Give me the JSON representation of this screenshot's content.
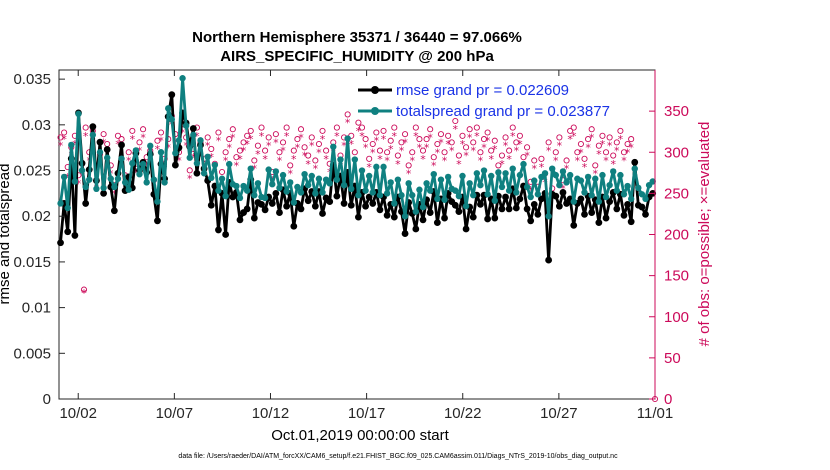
{
  "chart_data": {
    "type": "line",
    "title_line1": "Northern Hemisphere 35371 / 36440 = 97.066%",
    "title_line2": "AIRS_SPECIFIC_HUMIDITY @ 200 hPa",
    "xlabel": "Oct.01,2019 00:00:00 start",
    "ylabel_left": "rmse and totalspread",
    "ylabel_right": "# of obs: o=possible; ×=evaluated",
    "xlim": [
      0,
      31
    ],
    "ylim_left": [
      0,
      0.036
    ],
    "ylim_right": [
      0,
      400
    ],
    "x_ticks": [
      {
        "value": 1,
        "label": "10/02"
      },
      {
        "value": 6,
        "label": "10/07"
      },
      {
        "value": 11,
        "label": "10/12"
      },
      {
        "value": 16,
        "label": "10/17"
      },
      {
        "value": 21,
        "label": "10/22"
      },
      {
        "value": 26,
        "label": "10/27"
      },
      {
        "value": 31,
        "label": "11/01"
      }
    ],
    "y_ticks_left": [
      "0",
      "0.005",
      "0.01",
      "0.015",
      "0.02",
      "0.025",
      "0.03",
      "0.035"
    ],
    "y_ticks_right": [
      "0",
      "50",
      "100",
      "150",
      "200",
      "250",
      "300",
      "350"
    ],
    "colors": {
      "rmse": "#000000",
      "spread": "#0f8080",
      "obs": "#cc0a5a",
      "legend_text": "#1a33e6"
    },
    "legend": {
      "rmse": "rmse grand pr = 0.022609",
      "spread": "totalspread grand pr = 0.023877"
    },
    "series": [
      {
        "name": "rmse",
        "values": [
          0.0171,
          0.0214,
          0.0183,
          0.0263,
          0.0179,
          0.0313,
          0.0258,
          0.0214,
          0.0251,
          0.0298,
          0.0239,
          0.0281,
          0.0225,
          0.0273,
          0.0232,
          0.0206,
          0.0247,
          0.0278,
          0.0228,
          0.0243,
          0.0231,
          0.0269,
          0.025,
          0.0259,
          0.0248,
          0.0268,
          0.0224,
          0.0195,
          0.0257,
          0.0241,
          0.0309,
          0.0333,
          0.0256,
          0.0275,
          0.0313,
          0.0302,
          0.0276,
          0.0296,
          0.0247,
          0.0278,
          0.0252,
          0.0239,
          0.0212,
          0.0233,
          0.0185,
          0.0225,
          0.018,
          0.0237,
          0.0221,
          0.0226,
          0.0196,
          0.0204,
          0.0208,
          0.024,
          0.0198,
          0.0215,
          0.0213,
          0.0207,
          0.0221,
          0.0214,
          0.0225,
          0.0204,
          0.0229,
          0.0211,
          0.0225,
          0.0189,
          0.0214,
          0.0208,
          0.023,
          0.0217,
          0.0227,
          0.0211,
          0.0227,
          0.0203,
          0.022,
          0.0216,
          0.0256,
          0.0222,
          0.0244,
          0.0214,
          0.0248,
          0.0212,
          0.0233,
          0.0199,
          0.0226,
          0.0211,
          0.0221,
          0.0214,
          0.0226,
          0.0207,
          0.0221,
          0.0201,
          0.0213,
          0.0199,
          0.0221,
          0.0205,
          0.0181,
          0.0215,
          0.0203,
          0.0186,
          0.0213,
          0.0196,
          0.0218,
          0.0204,
          0.0227,
          0.0193,
          0.0219,
          0.0198,
          0.0225,
          0.0216,
          0.0212,
          0.0205,
          0.0221,
          0.0186,
          0.021,
          0.0199,
          0.0223,
          0.0213,
          0.0223,
          0.0197,
          0.0219,
          0.0198,
          0.0222,
          0.0208,
          0.0221,
          0.0208,
          0.023,
          0.0209,
          0.0219,
          0.0233,
          0.0208,
          0.0195,
          0.0213,
          0.0202,
          0.0219,
          0.0225,
          0.0152,
          0.0224,
          0.0222,
          0.0211,
          0.0226,
          0.0214,
          0.0219,
          0.019,
          0.0214,
          0.0219,
          0.0202,
          0.0222,
          0.0204,
          0.0218,
          0.0193,
          0.0221,
          0.0198,
          0.0216,
          0.0226,
          0.0208,
          0.0224,
          0.0201,
          0.0213,
          0.0194,
          0.0259,
          0.0212,
          0.021,
          0.0202,
          0.0221,
          0.0225
        ]
      },
      {
        "name": "totalspread",
        "values": [
          0.0214,
          0.0243,
          0.0209,
          0.0278,
          0.0238,
          0.0312,
          0.025,
          0.0232,
          0.024,
          0.0289,
          0.023,
          0.027,
          0.0231,
          0.0264,
          0.0241,
          0.0232,
          0.0241,
          0.0263,
          0.0237,
          0.0229,
          0.0258,
          0.0272,
          0.0246,
          0.0257,
          0.0237,
          0.0277,
          0.024,
          0.0216,
          0.027,
          0.0237,
          0.0318,
          0.0306,
          0.0269,
          0.0283,
          0.0351,
          0.0299,
          0.0264,
          0.0289,
          0.0258,
          0.0283,
          0.0247,
          0.0265,
          0.0242,
          0.0256,
          0.0228,
          0.0241,
          0.0222,
          0.0257,
          0.0235,
          0.0233,
          0.022,
          0.0233,
          0.0228,
          0.0252,
          0.0223,
          0.0236,
          0.0221,
          0.022,
          0.0251,
          0.0235,
          0.0249,
          0.0231,
          0.0245,
          0.0227,
          0.0237,
          0.0215,
          0.0232,
          0.0226,
          0.0246,
          0.0234,
          0.0244,
          0.0225,
          0.0241,
          0.0226,
          0.024,
          0.0236,
          0.0276,
          0.024,
          0.0262,
          0.0234,
          0.0285,
          0.023,
          0.0262,
          0.0223,
          0.025,
          0.0228,
          0.0244,
          0.0226,
          0.0254,
          0.0223,
          0.0254,
          0.0225,
          0.0237,
          0.0214,
          0.024,
          0.0223,
          0.02,
          0.0236,
          0.0223,
          0.0205,
          0.0229,
          0.021,
          0.0236,
          0.0228,
          0.0246,
          0.0219,
          0.024,
          0.0218,
          0.0243,
          0.023,
          0.0228,
          0.0222,
          0.0244,
          0.0211,
          0.0236,
          0.0223,
          0.0247,
          0.0234,
          0.025,
          0.0224,
          0.0244,
          0.0217,
          0.0248,
          0.0232,
          0.0247,
          0.0228,
          0.0252,
          0.0226,
          0.0245,
          0.0257,
          0.0232,
          0.0221,
          0.0239,
          0.0224,
          0.0243,
          0.0247,
          0.02,
          0.0252,
          0.0245,
          0.0234,
          0.0249,
          0.0237,
          0.0245,
          0.0216,
          0.0241,
          0.0239,
          0.0226,
          0.0243,
          0.0223,
          0.0241,
          0.0216,
          0.0245,
          0.0221,
          0.0234,
          0.0249,
          0.0228,
          0.0245,
          0.0224,
          0.0233,
          0.0219,
          0.0252,
          0.0231,
          0.0224,
          0.0219,
          0.0234,
          0.0238
        ]
      },
      {
        "name": "obs_possible",
        "values": [
          318,
          324,
          282,
          306,
          320,
          272,
          286,
          330,
          300,
          326,
          266,
          298,
          322,
          310,
          284,
          260,
          320,
          316,
          272,
          300,
          326,
          286,
          312,
          328,
          294,
          302,
          266,
          314,
          324,
          292,
          316,
          344,
          322,
          300,
          334,
          318,
          278,
          304,
          330,
          312,
          292,
          318,
          304,
          286,
          324,
          276,
          300,
          316,
          328,
          294,
          302,
          312,
          320,
          326,
          290,
          308,
          330,
          302,
          318,
          276,
          322,
          300,
          312,
          330,
          284,
          302,
          316,
          328,
          306,
          296,
          318,
          290,
          310,
          326,
          302,
          286,
          312,
          330,
          296,
          318,
          346,
          320,
          300,
          336,
          330,
          316,
          292,
          310,
          324,
          302,
          326,
          300,
          314,
          330,
          296,
          312,
          322,
          284,
          300,
          330,
          316,
          302,
          316,
          328,
          294,
          310,
          322,
          300,
          320,
          312,
          338,
          296,
          320,
          306,
          328,
          312,
          330,
          300,
          316,
          324,
          302,
          314,
          284,
          296,
          318,
          302,
          330,
          312,
          320,
          294,
          306,
          264,
          290,
          258,
          292,
          274,
          312,
          256,
          300,
          318,
          266,
          290,
          326,
          330,
          300,
          310,
          292,
          316,
          328,
          284,
          308,
          320,
          300,
          318,
          296,
          312,
          326,
          300,
          310,
          316
        ]
      },
      {
        "name": "obs_evaluated",
        "values": [
          308,
          316,
          270,
          296,
          310,
          262,
          276,
          320,
          290,
          316,
          256,
          288,
          312,
          300,
          274,
          250,
          310,
          306,
          262,
          290,
          316,
          276,
          302,
          318,
          284,
          292,
          256,
          304,
          314,
          282,
          306,
          334,
          312,
          290,
          324,
          308,
          268,
          294,
          320,
          302,
          282,
          308,
          294,
          276,
          314,
          266,
          290,
          306,
          318,
          284,
          292,
          302,
          310,
          316,
          280,
          298,
          320,
          292,
          308,
          266,
          312,
          290,
          302,
          320,
          274,
          292,
          306,
          318,
          296,
          286,
          308,
          280,
          300,
          316,
          292,
          276,
          302,
          320,
          286,
          308,
          336,
          310,
          290,
          326,
          320,
          306,
          282,
          300,
          314,
          292,
          316,
          290,
          304,
          320,
          286,
          302,
          312,
          274,
          290,
          320,
          306,
          292,
          306,
          318,
          284,
          300,
          312,
          290,
          310,
          302,
          328,
          286,
          310,
          296,
          318,
          302,
          320,
          290,
          306,
          314,
          292,
          304,
          274,
          286,
          308,
          292,
          320,
          302,
          310,
          284,
          296,
          254,
          280,
          248,
          282,
          264,
          302,
          246,
          290,
          308,
          256,
          280,
          316,
          320,
          290,
          300,
          282,
          306,
          318,
          274,
          298,
          310,
          290,
          308,
          286,
          302,
          316,
          290,
          300,
          306
        ]
      },
      {
        "name": "obs_outlier",
        "points": [
          {
            "x": 1.3,
            "possible": 133,
            "evaluated": 129
          }
        ]
      }
    ]
  },
  "footer": "data file: /Users/raeder/DAI/ATM_forcXX/CAM6_setup/f.e21.FHIST_BGC.f09_025.CAM6assim.011/Diags_NTrS_2019-10/obs_diag_output.nc"
}
